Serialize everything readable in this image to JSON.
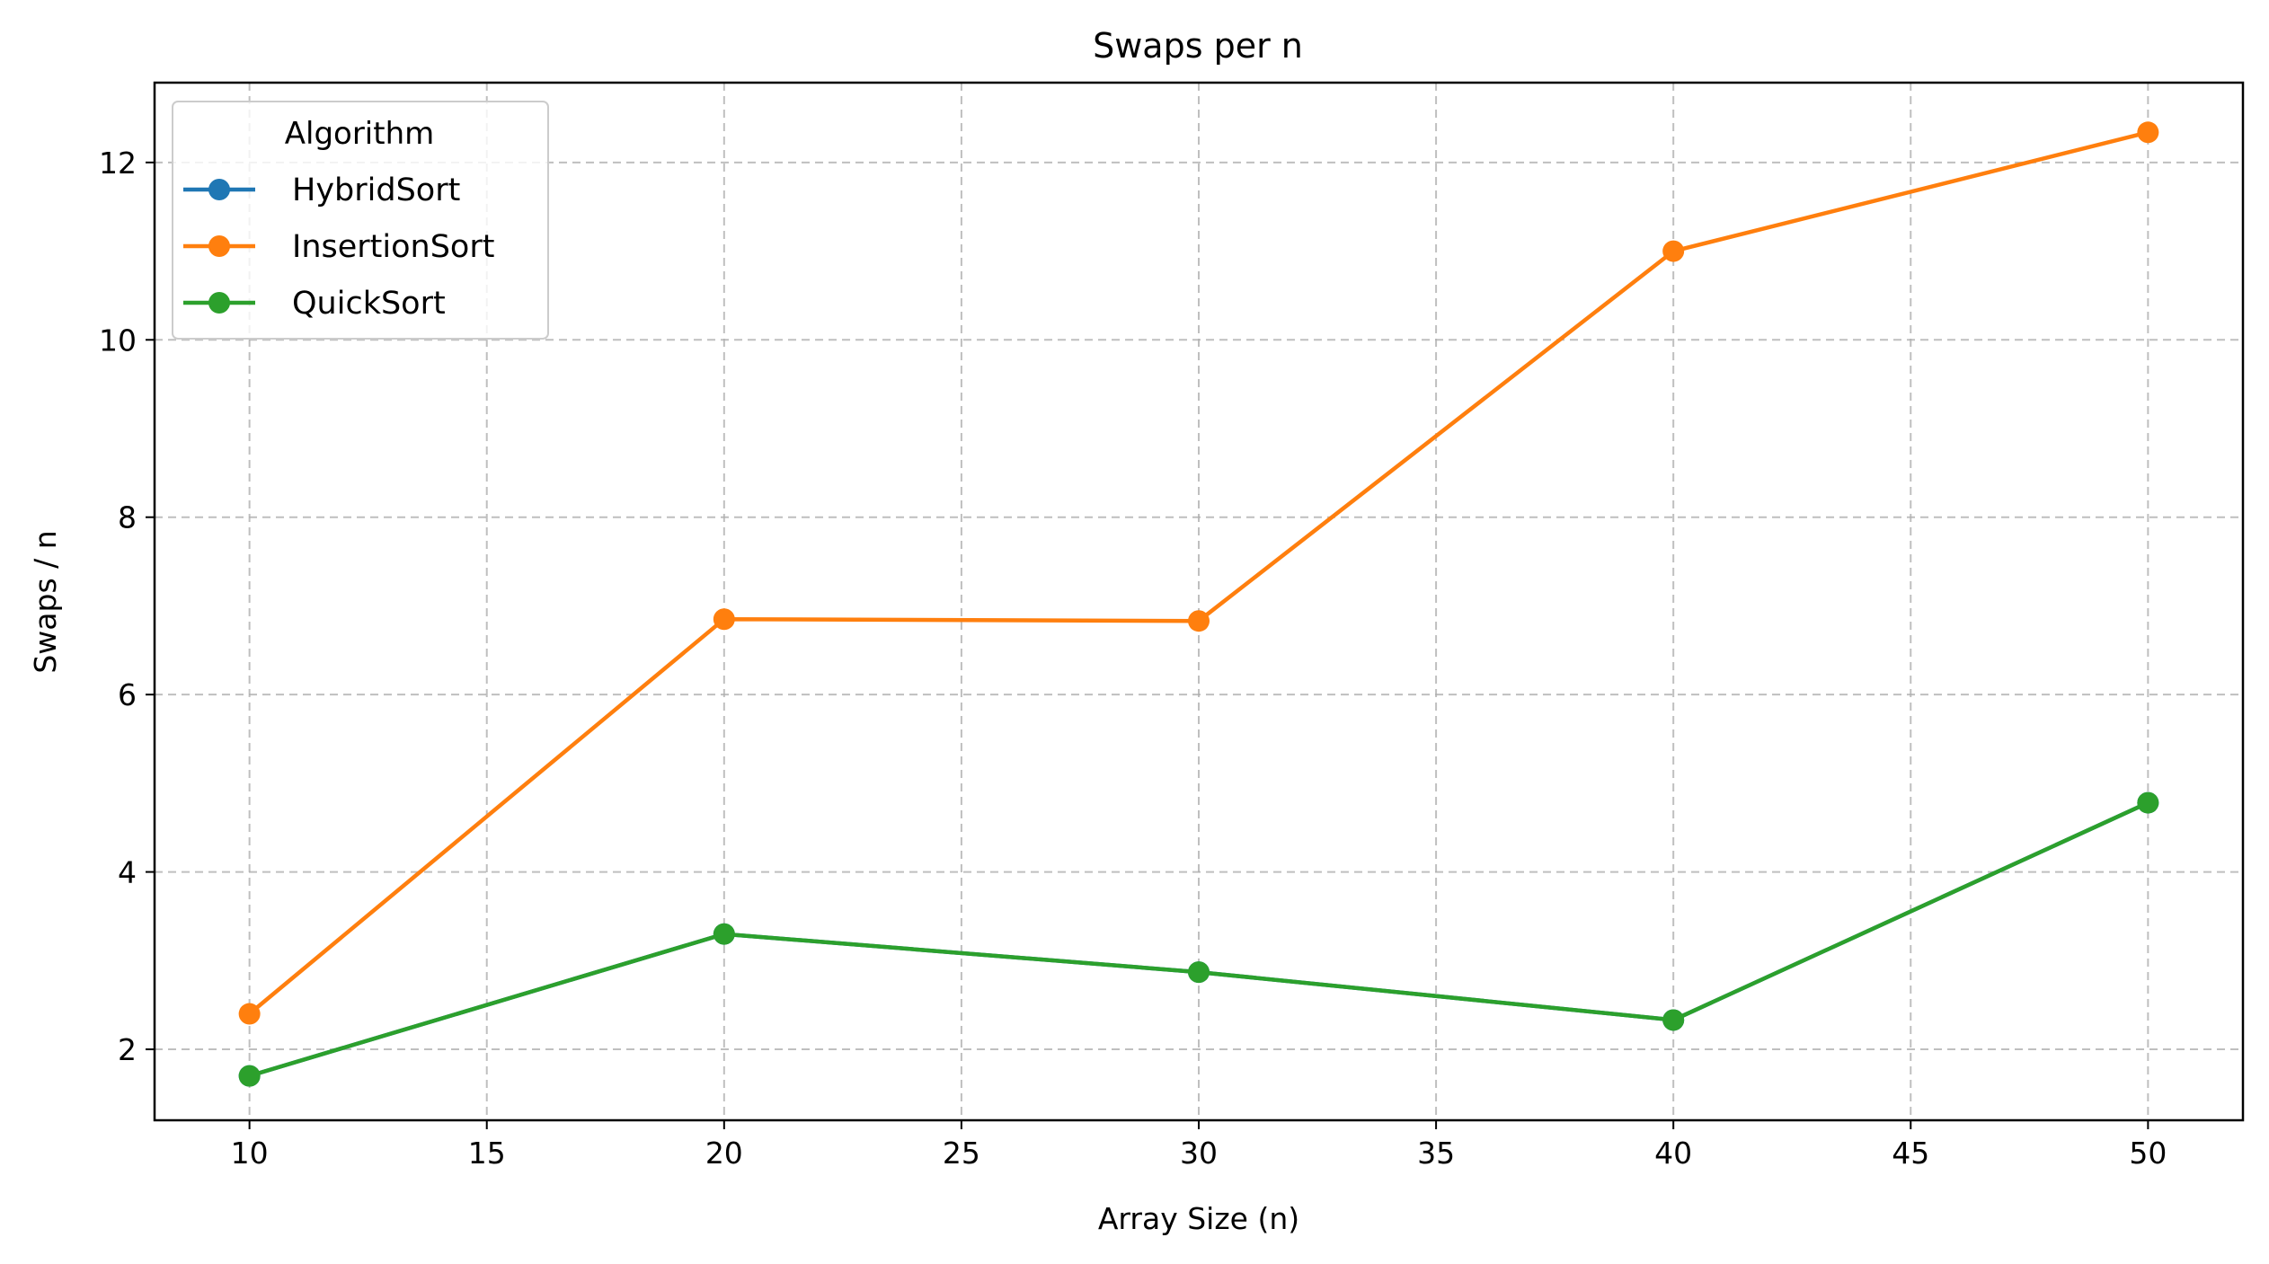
{
  "chart_data": {
    "type": "line",
    "title": "Swaps per n",
    "xlabel": "Array Size (n)",
    "ylabel": "Swaps / n",
    "x": [
      10,
      20,
      30,
      40,
      50
    ],
    "xlim": [
      8,
      52
    ],
    "ylim": [
      1.2,
      12.9
    ],
    "xticks": [
      10,
      15,
      20,
      25,
      30,
      35,
      40,
      45,
      50
    ],
    "yticks": [
      2,
      4,
      6,
      8,
      10,
      12
    ],
    "grid": true,
    "legend": {
      "title": "Algorithm",
      "placement": "top-left"
    },
    "series": [
      {
        "name": "HybridSort",
        "color": "#1f77b4",
        "marker": "circle",
        "values": [
          1.7,
          3.3,
          2.87,
          2.33,
          4.78
        ]
      },
      {
        "name": "InsertionSort",
        "color": "#ff7f0e",
        "marker": "circle",
        "values": [
          2.4,
          6.85,
          6.83,
          11.0,
          12.34
        ]
      },
      {
        "name": "QuickSort",
        "color": "#2ca02c",
        "marker": "circle",
        "values": [
          1.7,
          3.3,
          2.87,
          2.33,
          4.78
        ]
      }
    ]
  }
}
